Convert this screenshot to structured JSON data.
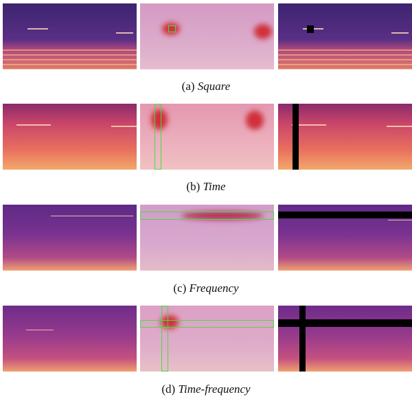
{
  "figure": {
    "subfigures": [
      {
        "label": "(a)",
        "name": "Square"
      },
      {
        "label": "(b)",
        "name": "Time"
      },
      {
        "label": "(c)",
        "name": "Frequency"
      },
      {
        "label": "(d)",
        "name": "Time-frequency"
      }
    ]
  }
}
